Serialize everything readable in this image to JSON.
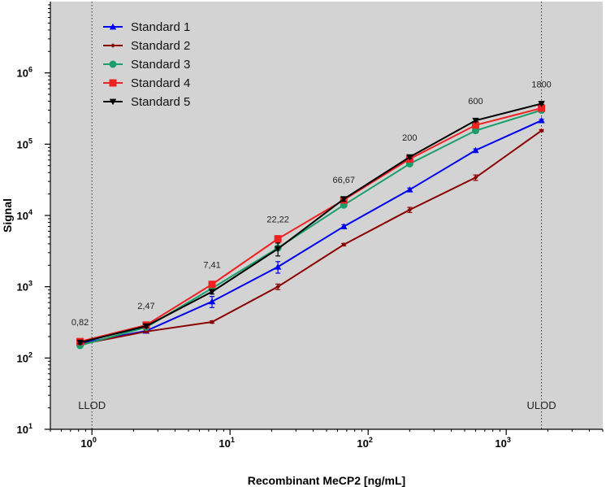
{
  "chart_data": {
    "type": "line",
    "xlabel": "Recombinant MeCP2  [ng/mL]",
    "ylabel": "Signal",
    "x_scale": "log",
    "y_scale": "log",
    "xlim": [
      0.5,
      5000
    ],
    "ylim": [
      10,
      10000000
    ],
    "grid": false,
    "background_color": "#d3d3d3",
    "legend_position": "top-left",
    "x_tick_labels": [
      {
        "base": "10",
        "exp": "0",
        "value": 1
      },
      {
        "base": "10",
        "exp": "1",
        "value": 10
      },
      {
        "base": "10",
        "exp": "2",
        "value": 100
      },
      {
        "base": "10",
        "exp": "3",
        "value": 1000
      }
    ],
    "y_tick_labels": [
      {
        "base": "10",
        "exp": "1",
        "value": 10
      },
      {
        "base": "10",
        "exp": "2",
        "value": 100
      },
      {
        "base": "10",
        "exp": "3",
        "value": 1000
      },
      {
        "base": "10",
        "exp": "4",
        "value": 10000
      },
      {
        "base": "10",
        "exp": "5",
        "value": 100000
      },
      {
        "base": "10",
        "exp": "6",
        "value": 1000000
      }
    ],
    "x": [
      0.82,
      2.47,
      7.41,
      22.22,
      66.67,
      200,
      600,
      1800
    ],
    "series": [
      {
        "name": "Standard 1",
        "color": "#0000ee",
        "marker": "triangle-up",
        "values": [
          160,
          240,
          620,
          1900,
          7000,
          23000,
          82000,
          215000
        ],
        "errors": [
          10,
          10,
          110,
          350,
          400,
          1200,
          4000,
          8000
        ]
      },
      {
        "name": "Standard 2",
        "color": "#8b0000",
        "marker": "diamond",
        "values": [
          155,
          235,
          320,
          1000,
          3900,
          12000,
          34000,
          155000
        ],
        "errors": [
          5,
          8,
          12,
          90,
          150,
          1000,
          3000,
          5000
        ]
      },
      {
        "name": "Standard 3",
        "color": "#1a9e6a",
        "marker": "circle",
        "values": [
          150,
          270,
          950,
          3500,
          14000,
          53000,
          155000,
          300000
        ],
        "errors": [
          5,
          10,
          40,
          200,
          600,
          2500,
          6000,
          10000
        ]
      },
      {
        "name": "Standard 4",
        "color": "#ee2222",
        "marker": "square",
        "values": [
          170,
          290,
          1080,
          4700,
          16500,
          62000,
          185000,
          320000
        ],
        "errors": [
          8,
          15,
          60,
          500,
          1000,
          3000,
          8000,
          12000
        ]
      },
      {
        "name": "Standard 5",
        "color": "#000000",
        "marker": "triangle-down",
        "values": [
          165,
          280,
          850,
          3400,
          17000,
          66000,
          215000,
          370000
        ],
        "errors": [
          8,
          12,
          60,
          700,
          1200,
          3000,
          8000,
          10000
        ]
      }
    ],
    "point_annotations": [
      {
        "x": 0.82,
        "label": "0,82"
      },
      {
        "x": 2.47,
        "label": "2,47"
      },
      {
        "x": 7.41,
        "label": "7,41"
      },
      {
        "x": 22.22,
        "label": "22,22"
      },
      {
        "x": 66.67,
        "label": "66,67"
      },
      {
        "x": 200,
        "label": "200"
      },
      {
        "x": 600,
        "label": "600"
      },
      {
        "x": 1800,
        "label": "1800"
      }
    ],
    "reference_lines": [
      {
        "x": 1,
        "label": "LLOD",
        "style": "dotted"
      },
      {
        "x": 1800,
        "label": "ULOD",
        "style": "dotted"
      }
    ]
  }
}
